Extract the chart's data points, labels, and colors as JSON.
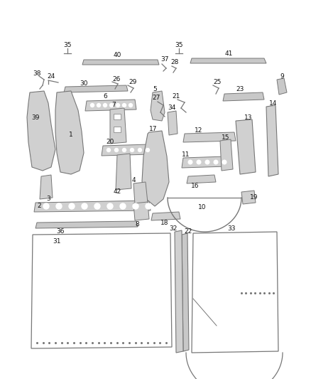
{
  "bg_color": "#ffffff",
  "line_color": "#777777",
  "label_color": "#111111",
  "figsize": [
    4.38,
    5.33
  ],
  "dpi": 100
}
